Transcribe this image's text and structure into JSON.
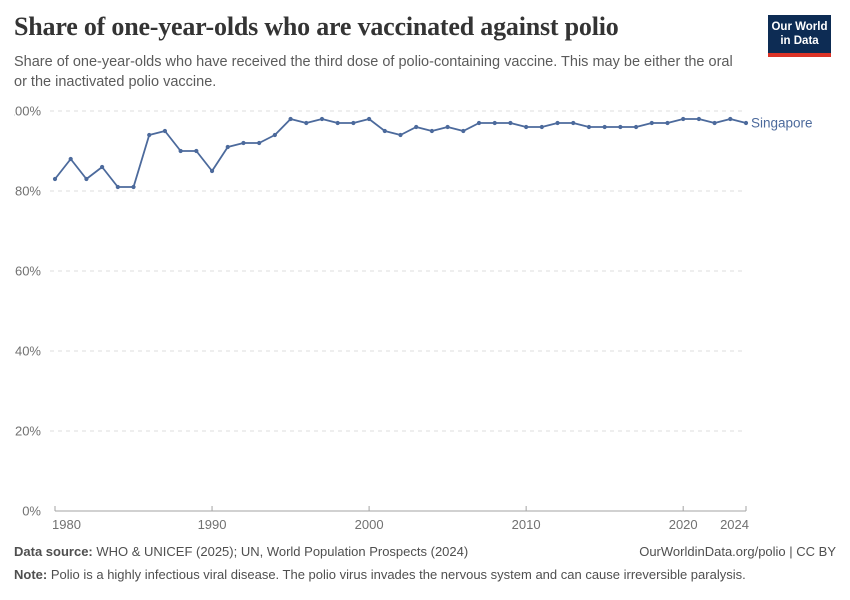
{
  "header": {
    "logo": {
      "line1": "Our World",
      "line2": "in Data",
      "bg_color": "#0d2c54",
      "accent_color": "#dc3327"
    }
  },
  "chart_data": {
    "type": "line",
    "title": "Share of one-year-olds who are vaccinated against polio",
    "subtitle": "Share of one-year-olds who have received the third dose of polio-containing vaccine. This may be either the oral or the inactivated polio vaccine.",
    "entity_label": "Singapore",
    "series": [
      {
        "name": "Singapore",
        "color": "#4C6A9C",
        "x": [
          1980,
          1981,
          1982,
          1983,
          1984,
          1985,
          1986,
          1987,
          1988,
          1989,
          1990,
          1991,
          1992,
          1993,
          1994,
          1995,
          1996,
          1997,
          1998,
          1999,
          2000,
          2001,
          2002,
          2003,
          2004,
          2005,
          2006,
          2007,
          2008,
          2009,
          2010,
          2011,
          2012,
          2013,
          2014,
          2015,
          2016,
          2017,
          2018,
          2019,
          2020,
          2021,
          2022,
          2023,
          2024
        ],
        "values": [
          83,
          88,
          83,
          86,
          81,
          81,
          94,
          95,
          90,
          90,
          85,
          91,
          92,
          92,
          94,
          98,
          97,
          98,
          97,
          97,
          98,
          95,
          94,
          96,
          95,
          96,
          95,
          97,
          97,
          97,
          96,
          96,
          97,
          97,
          96,
          96,
          96,
          96,
          97,
          97,
          98,
          98,
          97,
          98,
          97
        ]
      }
    ],
    "xlim": [
      1980,
      2024
    ],
    "ylim": [
      0,
      100
    ],
    "x_ticks": [
      1980,
      1990,
      2000,
      2010,
      2020,
      2024
    ],
    "y_ticks": [
      0,
      20,
      40,
      60,
      80,
      100
    ],
    "y_tick_suffix": "%",
    "grid": "horizontal-dashed",
    "legend_position": "end-of-line-label",
    "colors": {
      "line": "#4C6A9C",
      "gridline": "#dcdcdc",
      "axis": "#a3a3a3",
      "tick_label": "#717171"
    }
  },
  "footer": {
    "data_source_label": "Data source:",
    "data_source_text": " WHO & UNICEF (2025); UN, World Population Prospects (2024)",
    "attribution": "OurWorldinData.org/polio | CC BY",
    "note_label": "Note:",
    "note_text": " Polio is a highly infectious viral disease. The polio virus invades the nervous system and can cause irreversible paralysis."
  }
}
